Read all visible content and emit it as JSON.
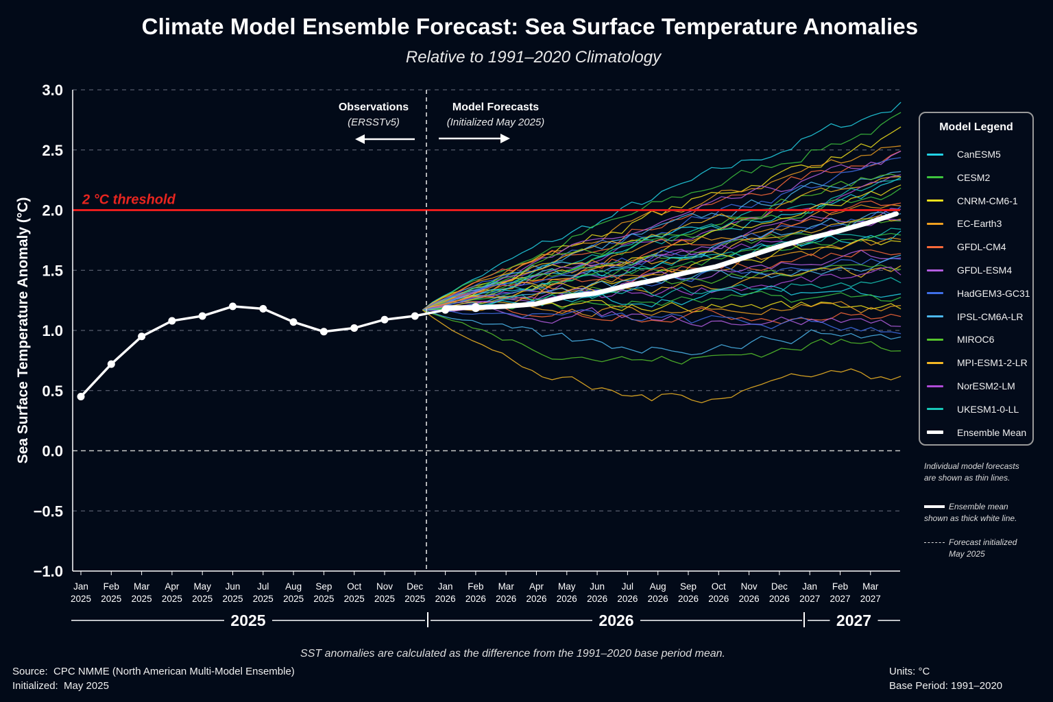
{
  "title": "Climate Model Ensemble Forecast: Sea Surface Temperature Anomalies",
  "subtitle": "Relative to 1991–2020 Climatology",
  "annotations": {
    "observations_title": "Observations",
    "observations_sub": "(ERSSTv5)",
    "forecast_title": "Model Forecasts",
    "forecast_sub": "(Initialized May 2025)",
    "threshold_label": "2 °C threshold"
  },
  "legend": {
    "title": "Model Legend",
    "items": [
      {
        "name": "CanESM5",
        "color": "#22d3e6"
      },
      {
        "name": "CESM2",
        "color": "#3ec43e"
      },
      {
        "name": "CNRM-CM6-1",
        "color": "#f2e21c"
      },
      {
        "name": "EC-Earth3",
        "color": "#f0a020"
      },
      {
        "name": "GFDL-CM4",
        "color": "#ff6a3a"
      },
      {
        "name": "GFDL-ESM4",
        "color": "#b45ee0"
      },
      {
        "name": "HadGEM3-GC31",
        "color": "#3f6fe8"
      },
      {
        "name": "IPSL-CM6A-LR",
        "color": "#4cb8ee"
      },
      {
        "name": "MIROC6",
        "color": "#56c42c"
      },
      {
        "name": "MPI-ESM1-2-LR",
        "color": "#f5b824"
      },
      {
        "name": "NorESM2-LM",
        "color": "#b04cd8"
      },
      {
        "name": "UKESM1-0-LL",
        "color": "#18c8b8"
      },
      {
        "name": "Ensemble Mean",
        "color": "#ffffff"
      }
    ]
  },
  "notes": {
    "individual": [
      "Individual model forecasts",
      "are shown as thin lines."
    ],
    "mean": [
      "Ensemble mean",
      "shown as thick white line."
    ],
    "init": [
      "Forecast initialized",
      "May 2025"
    ]
  },
  "footer": {
    "note": "SST anomalies are calculated as the difference from the 1991–2020 base period mean.",
    "source_label": "Source:",
    "source_value": "CPC NMME (North American Multi-Model Ensemble)",
    "initialized_label": "Initialized:",
    "initialized_value": "May 2025",
    "units": "Units: °C",
    "base_period": "Base Period: 1991–2020"
  },
  "chart_data": {
    "type": "line",
    "ylabel": "Sea Surface Temperature Anomaly (°C)",
    "ylim": [
      -1.0,
      3.0
    ],
    "yticks": [
      "3.0",
      "2.5",
      "2.0",
      "1.5",
      "1.0",
      "0.5",
      "0.0",
      "−0.5",
      "−1.0"
    ],
    "ytick_values": [
      3.0,
      2.5,
      2.0,
      1.5,
      1.0,
      0.5,
      0.0,
      -0.5,
      -1.0
    ],
    "grid": true,
    "legend_position": "right",
    "threshold": 2.0,
    "x_months": [
      [
        "Jan",
        "2025"
      ],
      [
        "Feb",
        "2025"
      ],
      [
        "Mar",
        "2025"
      ],
      [
        "Apr",
        "2025"
      ],
      [
        "May",
        "2025"
      ],
      [
        "Jun",
        "2025"
      ],
      [
        "Jul",
        "2025"
      ],
      [
        "Aug",
        "2025"
      ],
      [
        "Sep",
        "2025"
      ],
      [
        "Oct",
        "2025"
      ],
      [
        "Nov",
        "2025"
      ],
      [
        "Dec",
        "2025"
      ],
      [
        "Jan",
        "2026"
      ],
      [
        "Feb",
        "2026"
      ],
      [
        "Mar",
        "2026"
      ],
      [
        "Apr",
        "2026"
      ],
      [
        "May",
        "2026"
      ],
      [
        "Jun",
        "2026"
      ],
      [
        "Jul",
        "2026"
      ],
      [
        "Aug",
        "2026"
      ],
      [
        "Sep",
        "2026"
      ],
      [
        "Oct",
        "2026"
      ],
      [
        "Nov",
        "2026"
      ],
      [
        "Dec",
        "2026"
      ],
      [
        "Jan",
        "2027"
      ],
      [
        "Feb",
        "2027"
      ],
      [
        "Mar",
        "2027"
      ]
    ],
    "year_labels": [
      "2025",
      "2026",
      "2027"
    ],
    "observations": {
      "name": "Observations",
      "values": [
        0.45,
        0.72,
        0.95,
        1.08,
        1.12,
        1.2,
        1.18,
        1.07,
        0.99,
        1.02,
        1.09,
        1.12,
        1.17,
        1.19
      ]
    },
    "ensemble_mean": {
      "name": "Ensemble Mean",
      "values": [
        1.19,
        1.19,
        1.2,
        1.22,
        1.28,
        1.31,
        1.37,
        1.42,
        1.48,
        1.53,
        1.61,
        1.69,
        1.76,
        1.82,
        1.89,
        1.97
      ]
    },
    "member_endpoints": [
      2.88,
      2.75,
      2.62,
      2.57,
      2.5,
      2.45,
      2.4,
      2.36,
      2.32,
      2.28,
      2.25,
      2.22,
      2.2,
      2.17,
      2.14,
      2.1,
      2.07,
      2.04,
      2.01,
      1.98,
      1.95,
      1.92,
      1.89,
      1.86,
      1.83,
      1.8,
      1.77,
      1.74,
      1.7,
      1.66,
      1.62,
      1.58,
      1.54,
      1.5,
      1.46,
      1.42,
      1.35,
      1.28,
      1.22,
      1.17,
      1.12,
      1.07,
      1.02,
      0.95,
      0.86,
      0.61
    ]
  }
}
